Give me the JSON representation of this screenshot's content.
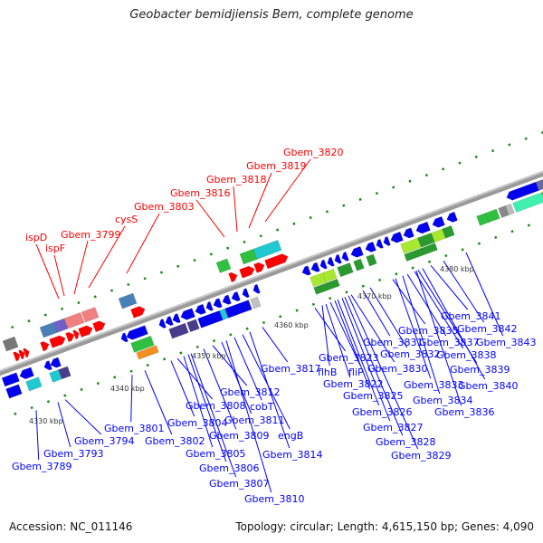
{
  "title": "Geobacter bemidjiensis Bem, complete genome",
  "footer": {
    "accession": "Accession: NC_011146",
    "topology": "Topology: circular; Length: 4,615,150 bp; Genes: 4,090"
  },
  "colors": {
    "forward_label": "#ff0000",
    "reverse_label": "#0000ff",
    "backbone": "#999999",
    "tick": "#1a8a1a"
  },
  "kbp_labels": [
    "4330 kbp",
    "4340 kbp",
    "4350 kbp",
    "4360 kbp",
    "4370 kbp",
    "4380 kbp"
  ],
  "forward_labels": [
    "ispD",
    "ispF",
    "Gbem_3799",
    "cysS",
    "Gbem_3803",
    "Gbem_3816",
    "Gbem_3818",
    "Gbem_3819",
    "Gbem_3820"
  ],
  "reverse_labels": [
    "Gbem_3789",
    "Gbem_3793",
    "Gbem_3794",
    "Gbem_3801",
    "Gbem_3802",
    "Gbem_3804",
    "Gbem_3808",
    "Gbem_3805",
    "Gbem_3806",
    "Gbem_3807",
    "Gbem_3809",
    "Gbem_3812",
    "Gbem_3811",
    "Gbem_3810",
    "cobT",
    "engB",
    "Gbem_3814",
    "Gbem_3817",
    "Gbem_3823",
    "flhB",
    "Gbem_3822",
    "fliP",
    "Gbem_3825",
    "Gbem_3826",
    "Gbem_3827",
    "Gbem_3828",
    "Gbem_3829",
    "Gbem_3830",
    "Gbem_3831",
    "Gbem_3832",
    "Gbem_3833",
    "Gbem_3834",
    "Gbem_3835",
    "Gbem_3836",
    "Gbem_3837",
    "Gbem_3838",
    "Gbem_3839",
    "Gbem_3840",
    "Gbem_3841",
    "Gbem_3842",
    "Gbem_3843"
  ]
}
